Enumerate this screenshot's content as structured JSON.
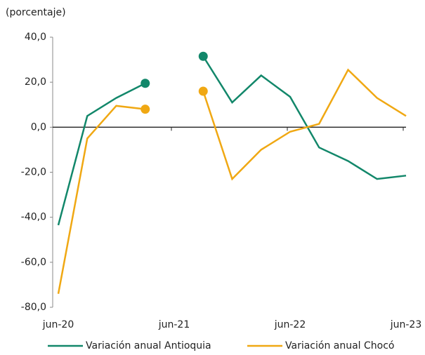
{
  "chart_data": {
    "type": "line",
    "y_axis_label": "(porcentaje)",
    "categories": [
      "jun-20",
      null,
      null,
      null,
      "jun-21",
      null,
      null,
      null,
      "jun-22",
      null,
      null,
      null,
      "jun-23"
    ],
    "series": [
      {
        "name": "Variación anual Antioquia",
        "color": "#12876a",
        "values": [
          -43.5,
          5,
          13,
          19.5,
          null,
          31.5,
          11,
          23,
          13.5,
          -9,
          -15,
          -23,
          -21.5
        ]
      },
      {
        "name": "Variación anual Chocó",
        "color": "#f0a813",
        "values": [
          -74,
          -5,
          9.5,
          8,
          null,
          16,
          -23,
          -10,
          -2,
          1.5,
          25.5,
          13,
          5
        ]
      }
    ],
    "ylim": [
      -80,
      40
    ],
    "yticks": [
      {
        "value": -80,
        "label": "-80,0"
      },
      {
        "value": -60,
        "label": "-60,0"
      },
      {
        "value": -40,
        "label": "-40,0"
      },
      {
        "value": -20,
        "label": "-20,0"
      },
      {
        "value": 0,
        "label": "0,0"
      },
      {
        "value": 20,
        "label": "20,0"
      },
      {
        "value": 40,
        "label": "40,0"
      }
    ],
    "legend": "bottom"
  }
}
